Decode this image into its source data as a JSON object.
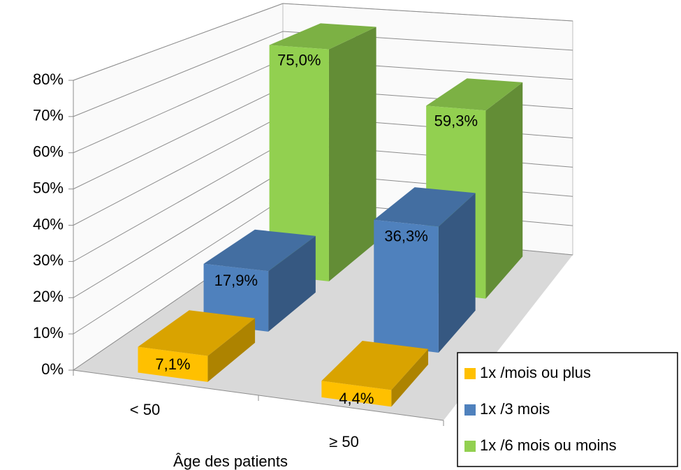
{
  "chart_data": {
    "type": "bar3d",
    "x_label": "Âge des patients",
    "categories": [
      "< 50",
      "≥ 50"
    ],
    "series": [
      {
        "name": "1x /mois ou plus",
        "color": "#FFC000",
        "values": [
          7.1,
          4.4
        ],
        "value_labels": [
          "7,1%",
          "4,4%"
        ]
      },
      {
        "name": "1x /3 mois",
        "color": "#4F81BD",
        "values": [
          17.9,
          36.3
        ],
        "value_labels": [
          "17,9%",
          "36,3%"
        ]
      },
      {
        "name": "1x /6 mois ou moins",
        "color": "#92D050",
        "values": [
          75.0,
          59.3
        ],
        "value_labels": [
          "75,0%",
          "59,3%"
        ]
      }
    ],
    "ylim": [
      0,
      80
    ],
    "yticks": [
      {
        "value": 0,
        "label": "0%"
      },
      {
        "value": 10,
        "label": "10%"
      },
      {
        "value": 20,
        "label": "20%"
      },
      {
        "value": 30,
        "label": "30%"
      },
      {
        "value": 40,
        "label": "40%"
      },
      {
        "value": 50,
        "label": "50%"
      },
      {
        "value": 60,
        "label": "60%"
      },
      {
        "value": 70,
        "label": "70%"
      },
      {
        "value": 80,
        "label": "80%"
      }
    ],
    "grid": true,
    "legend": "bottom-right"
  }
}
